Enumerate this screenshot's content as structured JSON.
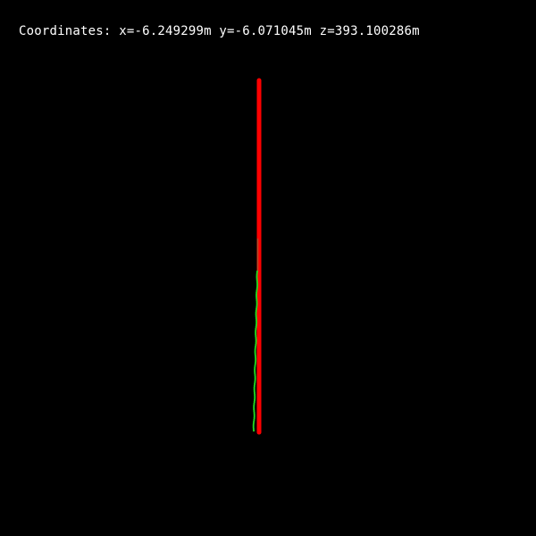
{
  "overlay": {
    "coordinates_label": "Coordinates:",
    "x_text": "x=-6.249299m",
    "y_text": "y=-6.071045m",
    "z_text": "z=393.100286m"
  },
  "colors": {
    "background": "#000000",
    "text": "#ffffff",
    "red_path": "#ff0000",
    "green_path": "#22dd22",
    "tip_dots": "#996633"
  }
}
